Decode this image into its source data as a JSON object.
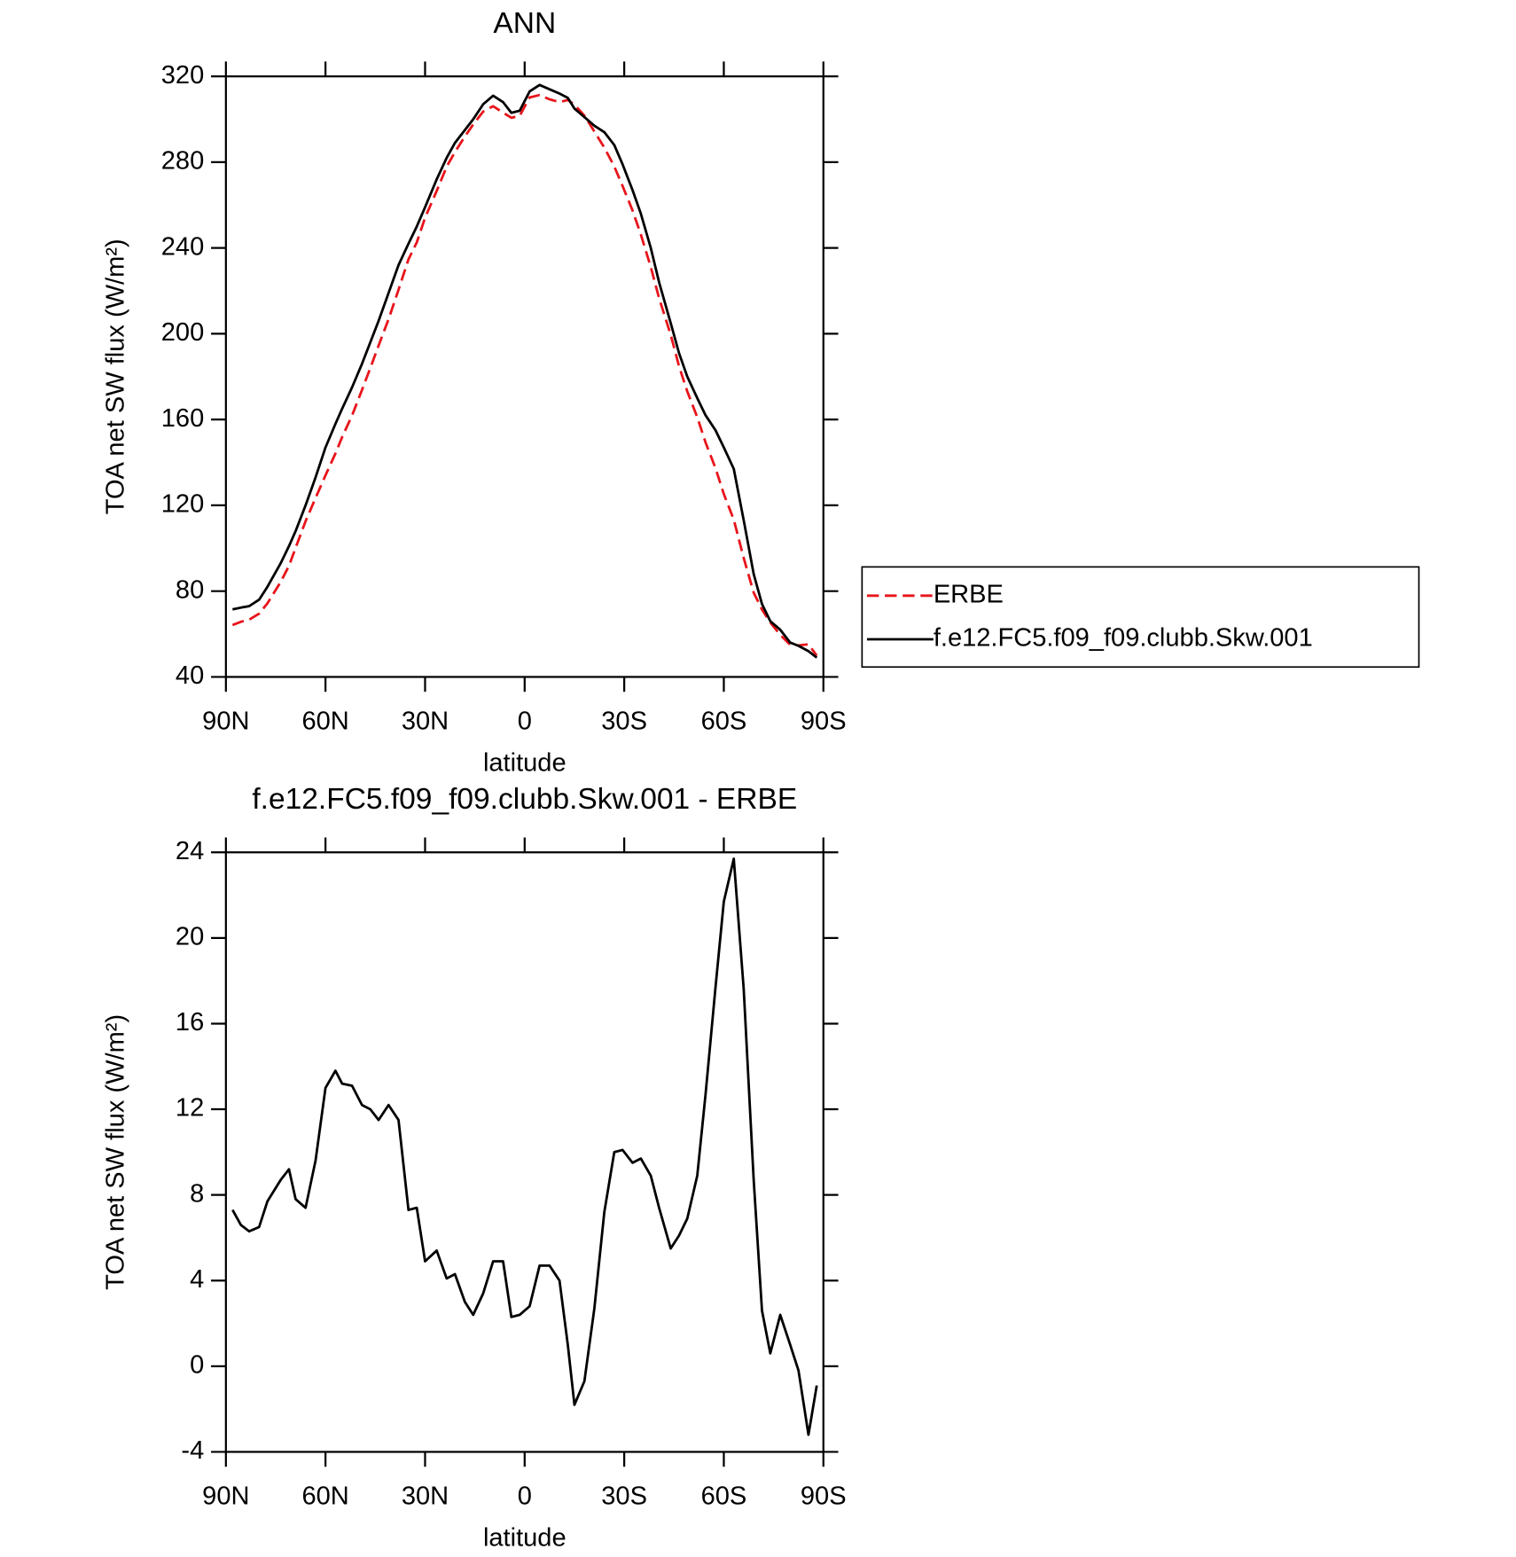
{
  "chart_data": [
    {
      "type": "line",
      "title": "ANN",
      "xlabel": "latitude",
      "ylabel": "TOA net SW flux (W/m²)",
      "x": [
        88,
        85.5,
        83,
        80,
        77.5,
        73.5,
        71,
        69,
        66,
        63,
        60,
        57,
        55,
        52,
        49,
        46.5,
        44,
        41,
        38,
        35,
        32.5,
        30,
        26.5,
        23.5,
        21,
        18,
        15.5,
        12.5,
        9.5,
        6.5,
        4,
        1.5,
        -1.5,
        -4.5,
        -7.5,
        -10.5,
        -13,
        -15,
        -18,
        -21,
        -24,
        -27,
        -29.5,
        -32.5,
        -35,
        -38,
        -40.5,
        -44,
        -46.5,
        -49,
        -52,
        -54.5,
        -57.5,
        -60,
        -63,
        -66,
        -69,
        -71.5,
        -74,
        -77,
        -80,
        -82.5,
        -85.5,
        -88
      ],
      "series": [
        {
          "name": "ERBE",
          "color": "#e8141b",
          "linestyle": "dashed",
          "values": [
            64.2,
            65.7,
            66.7,
            69.5,
            74.3,
            84.3,
            91.8,
            100.2,
            112.6,
            123.4,
            134,
            144.2,
            151.8,
            161.9,
            173.8,
            184,
            194.5,
            206.8,
            220.5,
            234.7,
            242.6,
            254.1,
            266.6,
            277.9,
            284.7,
            292,
            297.6,
            303.6,
            306.1,
            303.1,
            300.7,
            301.6,
            310.2,
            311.3,
            309.3,
            308,
            309,
            306.8,
            301.7,
            294.3,
            286.8,
            278,
            268.9,
            257.5,
            246.3,
            231.1,
            216.6,
            199.5,
            184.9,
            173.1,
            161.1,
            149.3,
            137.3,
            125.3,
            113.3,
            95.4,
            79.3,
            71.4,
            65.4,
            59.6,
            55,
            54.7,
            55.2,
            49.9
          ]
        },
        {
          "name": "f.e12.FC5.f09_f09.clubb.Skw.001",
          "color": "#000000",
          "linestyle": "solid",
          "values": [
            71.5,
            72.3,
            73,
            76,
            82,
            93,
            101,
            108,
            120,
            133,
            147,
            158,
            165,
            175,
            186,
            196,
            206,
            219,
            232,
            242,
            250,
            259,
            272,
            282,
            289,
            295,
            300,
            307,
            311,
            308,
            303,
            304,
            313,
            316,
            314,
            312,
            310,
            305,
            301,
            297,
            294,
            288,
            279,
            267,
            256,
            240,
            224,
            205,
            191,
            180,
            170,
            162,
            155,
            147,
            137,
            113,
            88,
            74,
            66,
            62,
            56,
            54.5,
            52,
            49
          ]
        }
      ],
      "xlim": [
        90,
        -90
      ],
      "xticks": [
        {
          "value": 90,
          "label": "90N"
        },
        {
          "value": 60,
          "label": "60N"
        },
        {
          "value": 30,
          "label": "30N"
        },
        0,
        {
          "value": -30,
          "label": "30S"
        },
        {
          "value": -60,
          "label": "60S"
        },
        {
          "value": -90,
          "label": "90S"
        }
      ],
      "ylim": [
        40,
        320
      ],
      "yticks": [
        40,
        80,
        120,
        160,
        200,
        240,
        280,
        320
      ],
      "legend": "right"
    },
    {
      "type": "line",
      "title": "f.e12.FC5.f09_f09.clubb.Skw.001 - ERBE",
      "xlabel": "latitude",
      "ylabel": "TOA net SW flux (W/m²)",
      "x": [
        88,
        85.5,
        83,
        80,
        77.5,
        73.5,
        71,
        69,
        66,
        63,
        60,
        57,
        55,
        52,
        49,
        46.5,
        44,
        41,
        38,
        35,
        32.5,
        30,
        26.5,
        23.5,
        21,
        18,
        15.5,
        12.5,
        9.5,
        6.5,
        4,
        1.5,
        -1.5,
        -4.5,
        -7.5,
        -10.5,
        -13,
        -15,
        -18,
        -21,
        -24,
        -27,
        -29.5,
        -32.5,
        -35,
        -38,
        -40.5,
        -44,
        -46.5,
        -49,
        -52,
        -54.5,
        -57.5,
        -60,
        -63,
        -66,
        -69,
        -71.5,
        -74,
        -77,
        -80,
        -82.5,
        -85.5,
        -88
      ],
      "values": [
        7.3,
        6.6,
        6.3,
        6.5,
        7.7,
        8.7,
        9.2,
        7.8,
        7.4,
        9.6,
        13,
        13.8,
        13.2,
        13.1,
        12.2,
        12,
        11.5,
        12.2,
        11.5,
        7.3,
        7.4,
        4.9,
        5.4,
        4.1,
        4.3,
        3,
        2.4,
        3.4,
        4.9,
        4.9,
        2.3,
        2.4,
        2.8,
        4.7,
        4.7,
        4,
        1,
        -1.8,
        -0.7,
        2.7,
        7.2,
        10,
        10.1,
        9.5,
        9.7,
        8.9,
        7.4,
        5.5,
        6.1,
        6.9,
        8.9,
        12.7,
        17.7,
        21.7,
        23.7,
        17.6,
        8.7,
        2.6,
        0.6,
        2.4,
        1,
        -0.2,
        -3.2,
        -0.9
      ],
      "color": "#000000",
      "xlim": [
        90,
        -90
      ],
      "xticks": [
        {
          "value": 90,
          "label": "90N"
        },
        {
          "value": 60,
          "label": "60N"
        },
        {
          "value": 30,
          "label": "30N"
        },
        0,
        {
          "value": -30,
          "label": "30S"
        },
        {
          "value": -60,
          "label": "60S"
        },
        {
          "value": -90,
          "label": "90S"
        }
      ],
      "ylim": [
        -4,
        24
      ],
      "yticks": [
        -4,
        0,
        4,
        8,
        12,
        16,
        20,
        24
      ]
    }
  ]
}
